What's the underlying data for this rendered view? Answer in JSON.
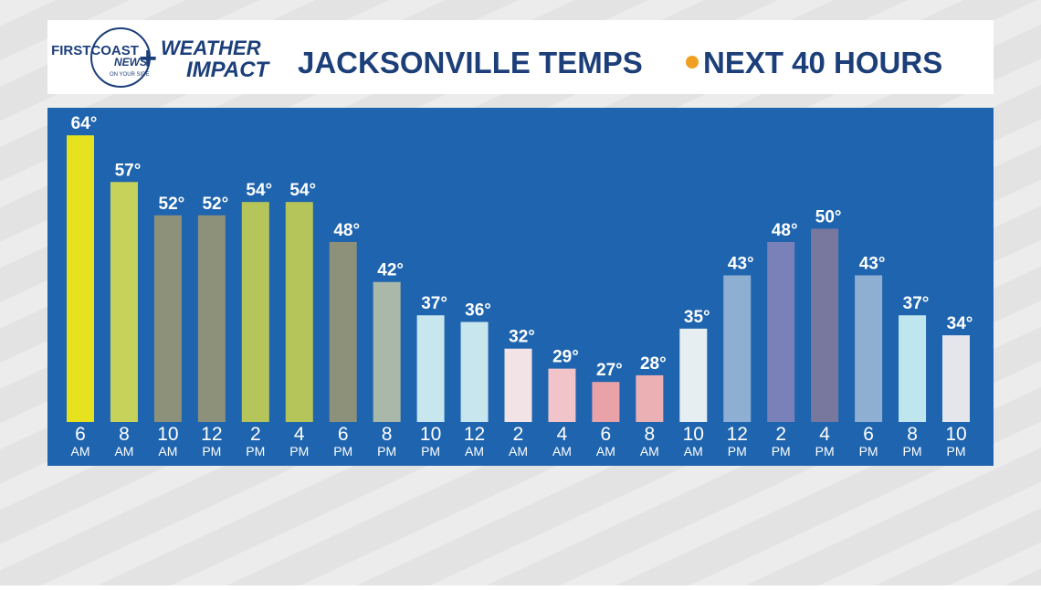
{
  "branding": {
    "station_top": "FIRSTCOAST",
    "station_bottom": "NEWS",
    "tagline": "ON YOUR SIDE",
    "plus": "+",
    "weather": "WEATHER",
    "impact": "IMPACT"
  },
  "chart_data": {
    "type": "bar",
    "title": "JACKSONVILLE TEMPS",
    "subtitle": "NEXT 40 HOURS",
    "categories": [
      [
        "6",
        "AM"
      ],
      [
        "8",
        "AM"
      ],
      [
        "10",
        "AM"
      ],
      [
        "12",
        "PM"
      ],
      [
        "2",
        "PM"
      ],
      [
        "4",
        "PM"
      ],
      [
        "6",
        "PM"
      ],
      [
        "8",
        "PM"
      ],
      [
        "10",
        "PM"
      ],
      [
        "12",
        "AM"
      ],
      [
        "2",
        "AM"
      ],
      [
        "4",
        "AM"
      ],
      [
        "6",
        "AM"
      ],
      [
        "8",
        "AM"
      ],
      [
        "10",
        "AM"
      ],
      [
        "12",
        "PM"
      ],
      [
        "2",
        "PM"
      ],
      [
        "4",
        "PM"
      ],
      [
        "6",
        "PM"
      ],
      [
        "8",
        "PM"
      ],
      [
        "10",
        "PM"
      ]
    ],
    "values": [
      64,
      57,
      52,
      52,
      54,
      54,
      48,
      42,
      37,
      36,
      32,
      29,
      27,
      28,
      35,
      43,
      48,
      50,
      43,
      37,
      34
    ],
    "value_labels": [
      "64°",
      "57°",
      "52°",
      "52°",
      "54°",
      "54°",
      "48°",
      "42°",
      "37°",
      "36°",
      "32°",
      "29°",
      "27°",
      "28°",
      "35°",
      "43°",
      "48°",
      "50°",
      "43°",
      "37°",
      "34°"
    ],
    "colors": [
      "#e6e21e",
      "#c6d25a",
      "#8e9179",
      "#8e9179",
      "#b6c55a",
      "#b6c55a",
      "#8e9179",
      "#a9b8a8",
      "#c8e6ee",
      "#c8e6ee",
      "#f2e4e6",
      "#f0c4c8",
      "#e8a2a8",
      "#eab0b4",
      "#e6eef2",
      "#8eaed2",
      "#7a80b8",
      "#78789e",
      "#8eaed2",
      "#bfe6ee",
      "#e4e6ec"
    ],
    "ylim": [
      21,
      68
    ]
  }
}
